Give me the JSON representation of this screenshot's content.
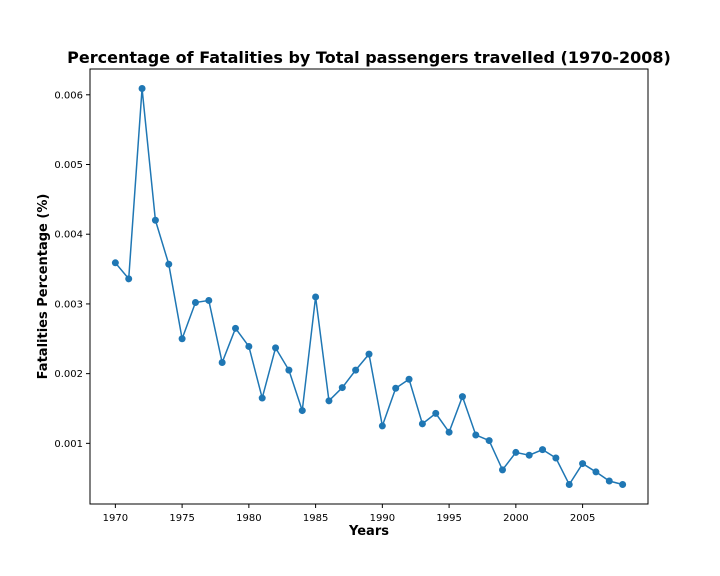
{
  "chart_data": {
    "type": "line",
    "title": "Percentage of Fatalities by Total passengers travelled (1970-2008)",
    "xlabel": "Years",
    "ylabel": "Fatalities Percentage (%)",
    "xlim": [
      1968.1,
      2009.9
    ],
    "ylim": [
      0.00013,
      0.00637
    ],
    "xticks": [
      1970,
      1975,
      1980,
      1985,
      1990,
      1995,
      2000,
      2005
    ],
    "yticks": [
      0.001,
      0.002,
      0.003,
      0.004,
      0.005,
      0.006
    ],
    "ytick_labels": [
      "0.001",
      "0.002",
      "0.003",
      "0.004",
      "0.005",
      "0.006"
    ],
    "grid": false,
    "line_color": "#1f77b4",
    "marker": "circle",
    "series": [
      {
        "x": [
          1970,
          1971,
          1972,
          1973,
          1974,
          1975,
          1976,
          1977,
          1978,
          1979,
          1980,
          1981,
          1982,
          1983,
          1984,
          1985,
          1986,
          1987,
          1988,
          1989,
          1990,
          1991,
          1992,
          1993,
          1994,
          1995,
          1996,
          1997,
          1998,
          1999,
          2000,
          2001,
          2002,
          2003,
          2004,
          2005,
          2006,
          2007,
          2008
        ],
        "values": [
          0.00359,
          0.00336,
          0.00609,
          0.0042,
          0.00357,
          0.0025,
          0.00302,
          0.00305,
          0.00216,
          0.00265,
          0.00239,
          0.00165,
          0.00237,
          0.00205,
          0.00147,
          0.0031,
          0.00161,
          0.0018,
          0.00205,
          0.00228,
          0.00125,
          0.00179,
          0.00192,
          0.00128,
          0.00143,
          0.00116,
          0.00167,
          0.00112,
          0.00104,
          0.00062,
          0.00087,
          0.00083,
          0.00091,
          0.00079,
          0.00041,
          0.00071,
          0.00059,
          0.00046,
          0.00041
        ]
      }
    ]
  }
}
